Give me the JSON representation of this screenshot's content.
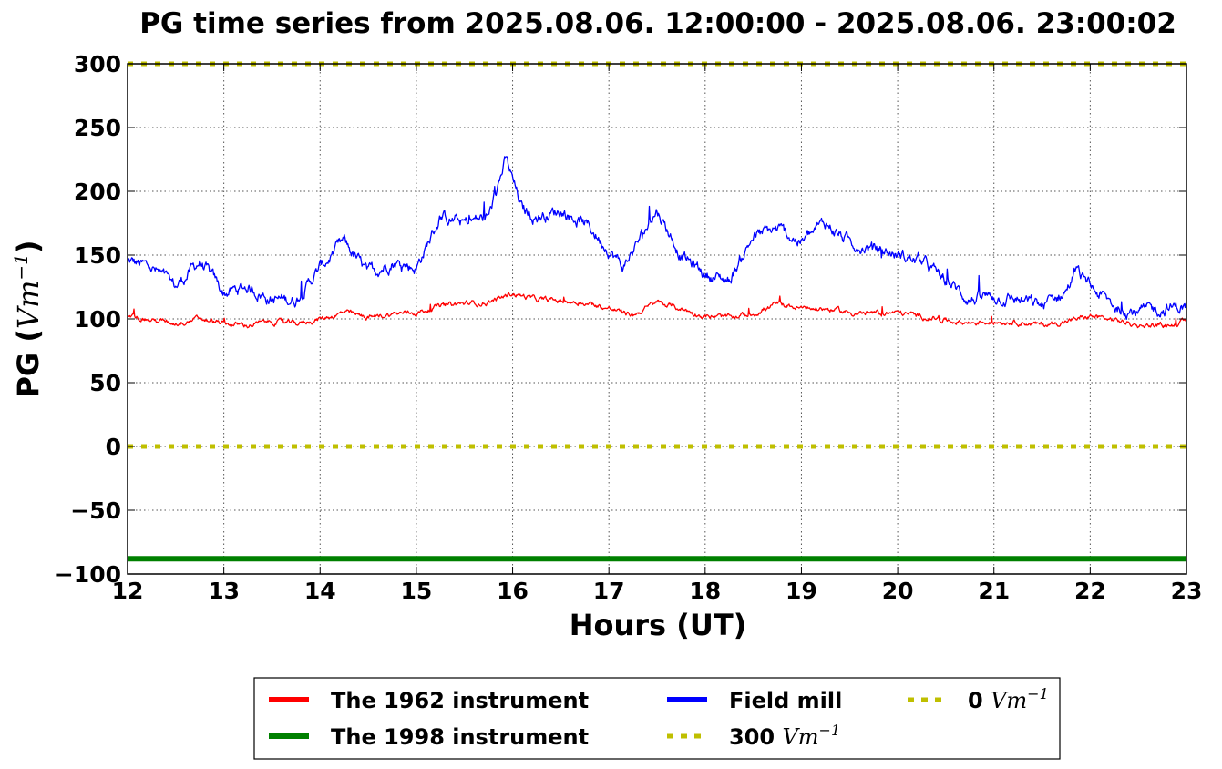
{
  "chart_data": {
    "type": "line",
    "title": "PG time series from 2025.08.06. 12:00:00 - 2025.08.06. 23:00:02",
    "xlabel": "Hours (UT)",
    "ylabel_prefix": "PG (",
    "ylabel_unit": "Vm",
    "ylabel_exp": "−1",
    "ylabel_suffix": ")",
    "xlim": [
      12,
      23
    ],
    "ylim": [
      -100,
      300
    ],
    "xticks": [
      12,
      13,
      14,
      15,
      16,
      17,
      18,
      19,
      20,
      21,
      22,
      23
    ],
    "yticks": [
      300,
      250,
      200,
      150,
      100,
      50,
      0,
      -50,
      -100
    ],
    "ytick_labels": [
      "300",
      "250",
      "200",
      "150",
      "100",
      "50",
      "0",
      "−50",
      "−100"
    ],
    "xtick_labels": [
      "12",
      "13",
      "14",
      "15",
      "16",
      "17",
      "18",
      "19",
      "20",
      "21",
      "22",
      "23"
    ],
    "grid": true,
    "legend_placement": "bottom-center, below axes",
    "series": [
      {
        "name": "The 1962 instrument",
        "color": "#ff0000",
        "style": "solid",
        "x": [
          12.0,
          12.25,
          12.5,
          12.75,
          13.0,
          13.25,
          13.5,
          13.75,
          14.0,
          14.25,
          14.5,
          14.75,
          15.0,
          15.25,
          15.5,
          15.75,
          16.0,
          16.25,
          16.5,
          16.75,
          17.0,
          17.25,
          17.5,
          17.75,
          18.0,
          18.25,
          18.5,
          18.75,
          19.0,
          19.25,
          19.5,
          19.75,
          20.0,
          20.25,
          20.5,
          20.75,
          21.0,
          21.25,
          21.5,
          21.75,
          22.0,
          22.25,
          22.5,
          22.75,
          23.0
        ],
        "y": [
          102,
          99,
          97,
          100,
          96,
          95,
          98,
          96,
          100,
          105,
          101,
          104,
          105,
          110,
          112,
          113,
          120,
          115,
          114,
          113,
          108,
          103,
          113,
          108,
          102,
          101,
          104,
          112,
          108,
          108,
          105,
          104,
          105,
          102,
          99,
          97,
          98,
          98,
          95,
          98,
          102,
          99,
          95,
          95,
          97
        ],
        "noise": 3
      },
      {
        "name": "The 1998 instrument",
        "color": "#008000",
        "style": "solid",
        "x": [
          12,
          23
        ],
        "y": [
          -88,
          -88
        ]
      },
      {
        "name": "Field mill",
        "color": "#0000ff",
        "style": "solid",
        "x": [
          12.0,
          12.25,
          12.5,
          12.75,
          13.0,
          13.25,
          13.5,
          13.75,
          14.0,
          14.25,
          14.5,
          14.75,
          15.0,
          15.25,
          15.5,
          15.75,
          15.93,
          16.1,
          16.25,
          16.5,
          16.75,
          17.0,
          17.15,
          17.3,
          17.5,
          17.75,
          18.0,
          18.25,
          18.5,
          18.75,
          19.0,
          19.25,
          19.5,
          19.75,
          20.0,
          20.25,
          20.5,
          20.75,
          21.0,
          21.25,
          21.5,
          21.75,
          21.85,
          22.0,
          22.25,
          22.5,
          22.75,
          23.0
        ],
        "y": [
          145,
          140,
          125,
          145,
          120,
          125,
          115,
          115,
          140,
          160,
          135,
          145,
          140,
          180,
          175,
          180,
          225,
          185,
          180,
          185,
          175,
          155,
          140,
          160,
          185,
          150,
          135,
          130,
          165,
          170,
          160,
          175,
          160,
          155,
          150,
          145,
          130,
          115,
          118,
          115,
          110,
          122,
          138,
          125,
          110,
          105,
          108,
          110
        ],
        "noise": 7
      },
      {
        "name": "300 Vm−1",
        "color": "#bfbf00",
        "style": "dotted",
        "x": [
          12,
          23
        ],
        "y": [
          300,
          300
        ]
      },
      {
        "name": "0 Vm−1",
        "color": "#bfbf00",
        "style": "dotted",
        "x": [
          12,
          23
        ],
        "y": [
          0,
          0
        ]
      }
    ],
    "legend": [
      {
        "prefix": "The 1962 instrument",
        "unit": "",
        "exp": "",
        "color": "#ff0000",
        "style": "solid"
      },
      {
        "prefix": "The 1998 instrument",
        "unit": "",
        "exp": "",
        "color": "#008000",
        "style": "solid"
      },
      {
        "prefix": "Field mill",
        "unit": "",
        "exp": "",
        "color": "#0000ff",
        "style": "solid"
      },
      {
        "prefix": "300 ",
        "unit": "Vm",
        "exp": "−1",
        "color": "#bfbf00",
        "style": "dotted"
      },
      {
        "prefix": "0 ",
        "unit": "Vm",
        "exp": "−1",
        "color": "#bfbf00",
        "style": "dotted"
      }
    ]
  }
}
